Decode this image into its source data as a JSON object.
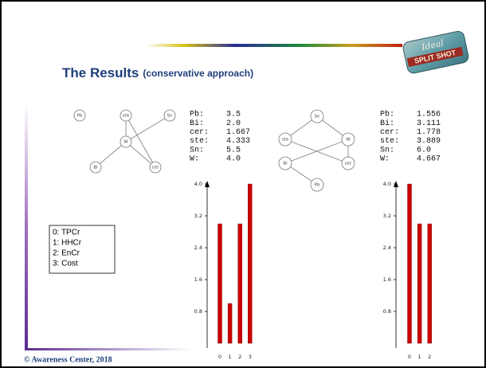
{
  "header": {
    "title": "The Results",
    "subtitle": "(conservative approach)"
  },
  "logo": {
    "line1": "Ideal",
    "line2": "SPLIT SHOT"
  },
  "legend": [
    "0: TPCr",
    "1: HHCr",
    "2: EnCr",
    "3: Cost"
  ],
  "graphs": [
    {
      "nodes": [
        "Pb",
        "ste",
        "Sn",
        "W",
        "Bi",
        "cer"
      ]
    },
    {
      "nodes": [
        "Sn",
        "ste",
        "W",
        "Bi",
        "cer",
        "Pb"
      ]
    }
  ],
  "tables": [
    {
      "rows": [
        [
          "Pb:",
          "3.5"
        ],
        [
          "Bi:",
          "2.0"
        ],
        [
          "cer:",
          "1.667"
        ],
        [
          "ste:",
          "4.333"
        ],
        [
          "Sn:",
          "5.5"
        ],
        [
          "W:",
          "4.0"
        ]
      ]
    },
    {
      "rows": [
        [
          "Pb:",
          "1.556"
        ],
        [
          "Bi:",
          "3.111"
        ],
        [
          "cer:",
          "1.778"
        ],
        [
          "ste:",
          "3.889"
        ],
        [
          "Sn:",
          "6.0"
        ],
        [
          "W:",
          "4.667"
        ]
      ]
    }
  ],
  "chart_data": [
    {
      "type": "bar",
      "categories": [
        "0",
        "1",
        "2",
        "3"
      ],
      "values": [
        3,
        1,
        3,
        4
      ],
      "color": "#cc0000",
      "ylim": [
        0,
        4
      ],
      "yticks": [
        0.8,
        1.6,
        2.4,
        3.2,
        {
          "value": 4,
          "label": "4.0"
        }
      ]
    },
    {
      "type": "bar",
      "categories": [
        "0",
        "1",
        "2"
      ],
      "values": [
        4,
        3,
        3
      ],
      "color": "#cc0000",
      "ylim": [
        0,
        4
      ],
      "yticks": [
        0.8,
        1.6,
        2.4,
        3.2,
        {
          "value": 4,
          "label": "4.0"
        }
      ]
    }
  ],
  "footer": "© Awareness Center, 2018"
}
